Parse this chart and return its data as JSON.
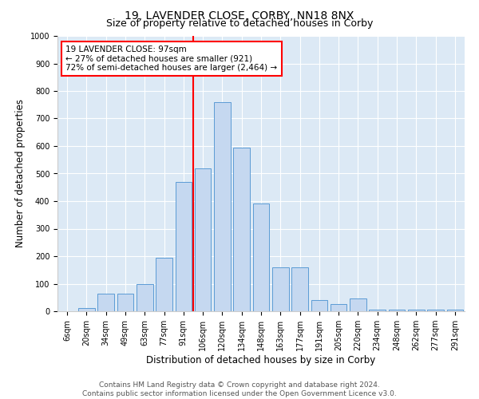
{
  "title": "19, LAVENDER CLOSE, CORBY, NN18 8NX",
  "subtitle": "Size of property relative to detached houses in Corby",
  "xlabel": "Distribution of detached houses by size in Corby",
  "ylabel": "Number of detached properties",
  "categories": [
    "6sqm",
    "20sqm",
    "34sqm",
    "49sqm",
    "63sqm",
    "77sqm",
    "91sqm",
    "106sqm",
    "120sqm",
    "134sqm",
    "148sqm",
    "163sqm",
    "177sqm",
    "191sqm",
    "205sqm",
    "220sqm",
    "234sqm",
    "248sqm",
    "262sqm",
    "277sqm",
    "291sqm"
  ],
  "values": [
    0,
    13,
    65,
    65,
    100,
    195,
    470,
    520,
    760,
    595,
    390,
    160,
    160,
    40,
    25,
    45,
    5,
    5,
    5,
    5,
    5
  ],
  "bar_color": "#c5d8f0",
  "bar_edge_color": "#5b9bd5",
  "vline_x_index": 7,
  "vline_color": "red",
  "annotation_text": "19 LAVENDER CLOSE: 97sqm\n← 27% of detached houses are smaller (921)\n72% of semi-detached houses are larger (2,464) →",
  "annotation_box_color": "white",
  "annotation_box_edge_color": "red",
  "ylim": [
    0,
    1000
  ],
  "yticks": [
    0,
    100,
    200,
    300,
    400,
    500,
    600,
    700,
    800,
    900,
    1000
  ],
  "background_color": "#dce9f5",
  "footer_text": "Contains HM Land Registry data © Crown copyright and database right 2024.\nContains public sector information licensed under the Open Government Licence v3.0.",
  "title_fontsize": 10,
  "subtitle_fontsize": 9,
  "xlabel_fontsize": 8.5,
  "ylabel_fontsize": 8.5,
  "tick_fontsize": 7,
  "annotation_fontsize": 7.5,
  "footer_fontsize": 6.5
}
